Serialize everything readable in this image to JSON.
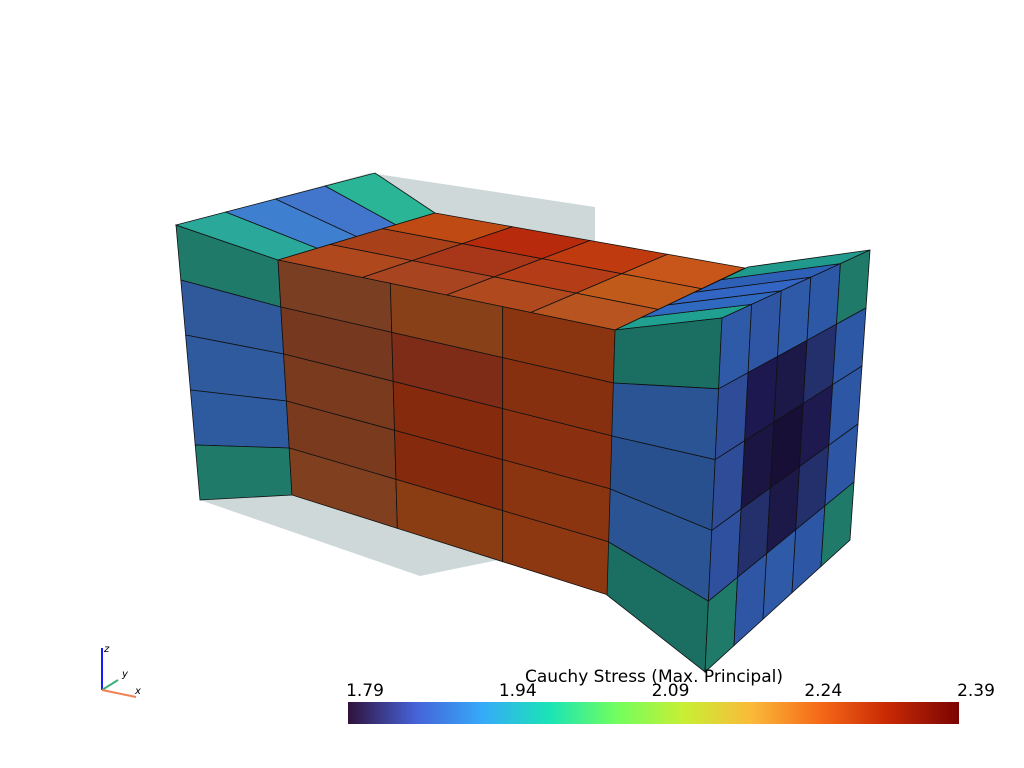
{
  "colorbar": {
    "title": "Cauchy Stress (Max. Principal)",
    "range": [
      1.79,
      2.39
    ],
    "ticks": [
      1.79,
      1.94,
      2.09,
      2.24,
      2.39
    ]
  },
  "axes_widget": {
    "z": "z",
    "y": "y",
    "x": "x"
  }
}
